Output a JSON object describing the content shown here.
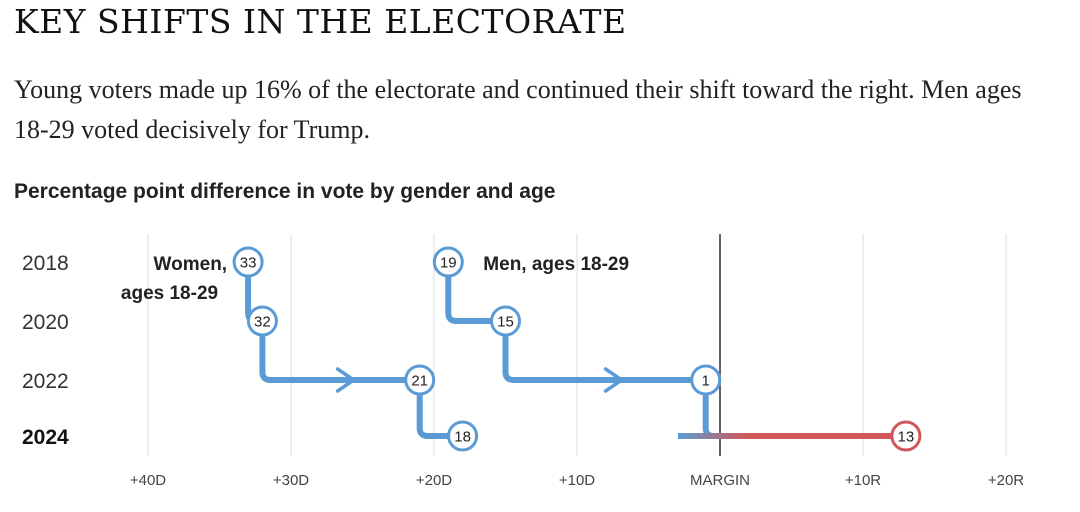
{
  "title": "KEY SHIFTS IN THE ELECTORATE",
  "description": "Young voters made up 16% of the electorate and continued their shift toward the right. Men ages 18-29 voted decisively for Trump.",
  "chart_data": {
    "type": "line",
    "title": "Percentage point difference in vote by gender and age",
    "xlabel": "",
    "ylabel": "",
    "grid": true,
    "xlim": [
      -45,
      23
    ],
    "x_ticks": [
      {
        "value": -40,
        "label": "+40D"
      },
      {
        "value": -30,
        "label": "+30D"
      },
      {
        "value": -20,
        "label": "+20D"
      },
      {
        "value": -10,
        "label": "+10D"
      },
      {
        "value": 0,
        "label": "MARGIN"
      },
      {
        "value": 10,
        "label": "+10R"
      },
      {
        "value": 20,
        "label": "+20R"
      }
    ],
    "years": [
      "2018",
      "2020",
      "2022",
      "2024"
    ],
    "series": [
      {
        "name": "Women, ages 18-29",
        "values": [
          -33,
          -32,
          -21,
          -18
        ],
        "labels": [
          "33",
          "32",
          "21",
          "18"
        ],
        "color": "#5b9bd5"
      },
      {
        "name": "Men, ages 18-29",
        "values": [
          -19,
          -15,
          -1,
          13
        ],
        "labels": [
          "19",
          "15",
          "1",
          "13"
        ],
        "color": "#5b9bd5",
        "end_color": "#d0585a"
      }
    ]
  }
}
